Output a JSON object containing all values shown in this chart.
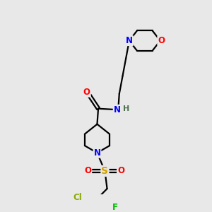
{
  "background_color": "#e8e8e8",
  "atom_colors": {
    "C": "#000000",
    "N": "#0000ff",
    "O": "#ff0000",
    "S": "#d4a000",
    "F": "#00bb00",
    "Cl": "#88aa00",
    "H": "#507050"
  },
  "bond_color": "#000000",
  "bond_width": 1.6,
  "font_size_atom": 8.5,
  "fig_bg": "#e8e8e8"
}
